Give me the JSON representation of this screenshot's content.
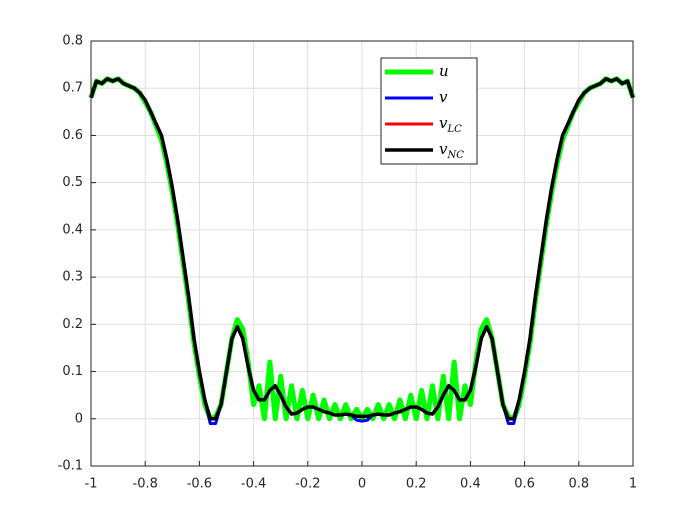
{
  "chart_data": {
    "type": "line",
    "x": [
      -1,
      -0.98,
      -0.96,
      -0.94,
      -0.92,
      -0.9,
      -0.88,
      -0.86,
      -0.84,
      -0.82,
      -0.8,
      -0.78,
      -0.76,
      -0.74,
      -0.72,
      -0.7,
      -0.68,
      -0.66,
      -0.64,
      -0.62,
      -0.6,
      -0.58,
      -0.56,
      -0.54,
      -0.52,
      -0.5,
      -0.48,
      -0.46,
      -0.44,
      -0.42,
      -0.4,
      -0.38,
      -0.36,
      -0.34,
      -0.32,
      -0.3,
      -0.28,
      -0.26,
      -0.24,
      -0.22,
      -0.2,
      -0.18,
      -0.16,
      -0.14,
      -0.12,
      -0.1,
      -0.08,
      -0.06,
      -0.04,
      -0.02,
      0,
      0.02,
      0.04,
      0.06,
      0.08,
      0.1,
      0.12,
      0.14,
      0.16,
      0.18,
      0.2,
      0.22,
      0.24,
      0.26,
      0.28,
      0.3,
      0.32,
      0.34,
      0.36,
      0.38,
      0.4,
      0.42,
      0.44,
      0.46,
      0.48,
      0.5,
      0.52,
      0.54,
      0.56,
      0.58,
      0.6,
      0.62,
      0.64,
      0.66,
      0.68,
      0.7,
      0.72,
      0.74,
      0.76,
      0.78,
      0.8,
      0.82,
      0.84,
      0.86,
      0.88,
      0.9,
      0.92,
      0.94,
      0.96,
      0.98,
      1
    ],
    "series": [
      {
        "name": "u",
        "color": "#00ff00",
        "values": [
          0.68,
          0.715,
          0.71,
          0.72,
          0.715,
          0.72,
          0.71,
          0.705,
          0.7,
          0.69,
          0.67,
          0.65,
          0.62,
          0.59,
          0.54,
          0.48,
          0.41,
          0.33,
          0.25,
          0.16,
          0.09,
          0.03,
          0,
          0.005,
          0.03,
          0.1,
          0.17,
          0.21,
          0.19,
          0.12,
          0.03,
          0.07,
          0,
          0.12,
          0,
          0.09,
          0,
          0.07,
          0,
          0.06,
          0,
          0.05,
          0,
          0.04,
          0,
          0.03,
          0,
          0.03,
          0,
          0.02,
          0,
          0.02,
          0,
          0.03,
          0,
          0.03,
          0,
          0.04,
          0,
          0.05,
          0,
          0.06,
          0,
          0.07,
          0,
          0.09,
          0,
          0.12,
          0,
          0.07,
          0.03,
          0.12,
          0.19,
          0.21,
          0.17,
          0.1,
          0.03,
          0.005,
          0,
          0.03,
          0.09,
          0.16,
          0.25,
          0.33,
          0.41,
          0.48,
          0.54,
          0.59,
          0.62,
          0.65,
          0.67,
          0.69,
          0.7,
          0.705,
          0.71,
          0.72,
          0.715,
          0.72,
          0.71,
          0.715,
          0.68
        ]
      },
      {
        "name": "v",
        "color": "#0000ff",
        "values": [
          0.68,
          0.715,
          0.71,
          0.72,
          0.715,
          0.72,
          0.71,
          0.705,
          0.7,
          0.69,
          0.675,
          0.65,
          0.625,
          0.6,
          0.55,
          0.49,
          0.42,
          0.34,
          0.26,
          0.17,
          0.1,
          0.04,
          -0.01,
          -0.01,
          0.03,
          0.1,
          0.17,
          0.195,
          0.17,
          0.11,
          0.06,
          0.04,
          0.04,
          0.06,
          0.07,
          0.05,
          0.025,
          0.01,
          0.012,
          0.02,
          0.025,
          0.025,
          0.02,
          0.015,
          0.012,
          0.008,
          0.008,
          0.01,
          0.008,
          -0.003,
          -0.005,
          -0.003,
          0.008,
          0.01,
          0.008,
          0.008,
          0.012,
          0.015,
          0.02,
          0.025,
          0.025,
          0.02,
          0.012,
          0.01,
          0.025,
          0.05,
          0.07,
          0.06,
          0.04,
          0.04,
          0.06,
          0.11,
          0.17,
          0.195,
          0.17,
          0.1,
          0.03,
          -0.01,
          -0.01,
          0.04,
          0.1,
          0.17,
          0.26,
          0.34,
          0.42,
          0.49,
          0.55,
          0.6,
          0.625,
          0.65,
          0.675,
          0.69,
          0.7,
          0.705,
          0.71,
          0.72,
          0.715,
          0.72,
          0.71,
          0.715,
          0.68
        ]
      },
      {
        "name": "vLC",
        "color": "#ff0000",
        "values": [
          0.68,
          0.715,
          0.71,
          0.72,
          0.715,
          0.72,
          0.71,
          0.705,
          0.7,
          0.69,
          0.675,
          0.65,
          0.625,
          0.6,
          0.55,
          0.49,
          0.42,
          0.34,
          0.26,
          0.17,
          0.1,
          0.04,
          0,
          0,
          0.03,
          0.1,
          0.17,
          0.195,
          0.17,
          0.11,
          0.06,
          0.04,
          0.04,
          0.06,
          0.07,
          0.05,
          0.025,
          0.01,
          0.012,
          0.02,
          0.025,
          0.025,
          0.02,
          0.015,
          0.012,
          0.008,
          0.008,
          0.01,
          0.008,
          0.005,
          0.005,
          0.005,
          0.008,
          0.01,
          0.008,
          0.008,
          0.012,
          0.015,
          0.02,
          0.025,
          0.025,
          0.02,
          0.012,
          0.01,
          0.025,
          0.05,
          0.07,
          0.06,
          0.04,
          0.04,
          0.06,
          0.11,
          0.17,
          0.195,
          0.17,
          0.1,
          0.03,
          0,
          0,
          0.04,
          0.1,
          0.17,
          0.26,
          0.34,
          0.42,
          0.49,
          0.55,
          0.6,
          0.625,
          0.65,
          0.675,
          0.69,
          0.7,
          0.705,
          0.71,
          0.72,
          0.715,
          0.72,
          0.71,
          0.715,
          0.68
        ]
      },
      {
        "name": "vNC",
        "color": "#000000",
        "values": [
          0.68,
          0.715,
          0.71,
          0.72,
          0.715,
          0.72,
          0.71,
          0.705,
          0.7,
          0.69,
          0.675,
          0.65,
          0.625,
          0.6,
          0.55,
          0.49,
          0.42,
          0.34,
          0.26,
          0.17,
          0.1,
          0.04,
          0,
          0,
          0.03,
          0.1,
          0.17,
          0.195,
          0.17,
          0.11,
          0.06,
          0.04,
          0.04,
          0.06,
          0.07,
          0.05,
          0.025,
          0.01,
          0.012,
          0.02,
          0.025,
          0.025,
          0.02,
          0.015,
          0.012,
          0.008,
          0.008,
          0.01,
          0.008,
          0.005,
          0.005,
          0.005,
          0.008,
          0.01,
          0.008,
          0.008,
          0.012,
          0.015,
          0.02,
          0.025,
          0.025,
          0.02,
          0.012,
          0.01,
          0.025,
          0.05,
          0.07,
          0.06,
          0.04,
          0.04,
          0.06,
          0.11,
          0.17,
          0.195,
          0.17,
          0.1,
          0.03,
          0,
          0,
          0.04,
          0.1,
          0.17,
          0.26,
          0.34,
          0.42,
          0.49,
          0.55,
          0.6,
          0.625,
          0.65,
          0.675,
          0.69,
          0.7,
          0.705,
          0.71,
          0.72,
          0.715,
          0.72,
          0.71,
          0.715,
          0.68
        ]
      }
    ],
    "xlim": [
      -1,
      1
    ],
    "xticks": [
      -1,
      -0.8,
      -0.6,
      -0.4,
      -0.2,
      0,
      0.2,
      0.4,
      0.6,
      0.8,
      1
    ],
    "ylim": [
      -0.1,
      0.8
    ],
    "yticks": [
      -0.1,
      0,
      0.1,
      0.2,
      0.3,
      0.4,
      0.5,
      0.6,
      0.7,
      0.8
    ],
    "grid": true,
    "legend": "top-right"
  }
}
